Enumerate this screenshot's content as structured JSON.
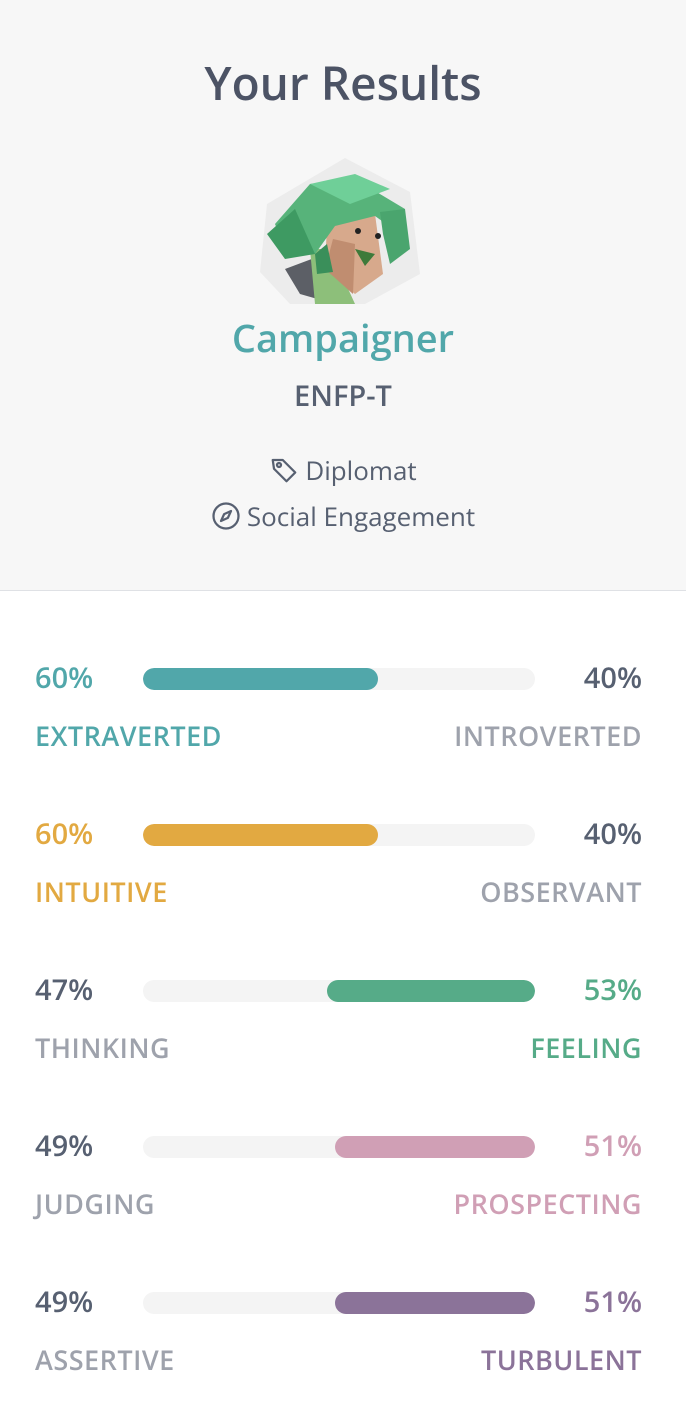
{
  "header": {
    "title": "Your Results",
    "type_name": "Campaigner",
    "type_code": "ENFP-T",
    "role": "Diplomat",
    "strategy": "Social Engagement"
  },
  "colors": {
    "teal": "#51a7aa",
    "yellow": "#e2a941",
    "green": "#56ab88",
    "pink": "#d09fb5",
    "purple": "#8b7399"
  },
  "traits": [
    {
      "left_pct": "60%",
      "right_pct": "40%",
      "left_label": "EXTRAVERTED",
      "right_label": "INTROVERTED",
      "dominant": "left",
      "fill_fraction": 0.6
    },
    {
      "left_pct": "60%",
      "right_pct": "40%",
      "left_label": "INTUITIVE",
      "right_label": "OBSERVANT",
      "dominant": "left",
      "fill_fraction": 0.6
    },
    {
      "left_pct": "47%",
      "right_pct": "53%",
      "left_label": "THINKING",
      "right_label": "FEELING",
      "dominant": "right",
      "fill_fraction": 0.53
    },
    {
      "left_pct": "49%",
      "right_pct": "51%",
      "left_label": "JUDGING",
      "right_label": "PROSPECTING",
      "dominant": "right",
      "fill_fraction": 0.51
    },
    {
      "left_pct": "49%",
      "right_pct": "51%",
      "left_label": "ASSERTIVE",
      "right_label": "TURBULENT",
      "dominant": "right",
      "fill_fraction": 0.51
    }
  ]
}
